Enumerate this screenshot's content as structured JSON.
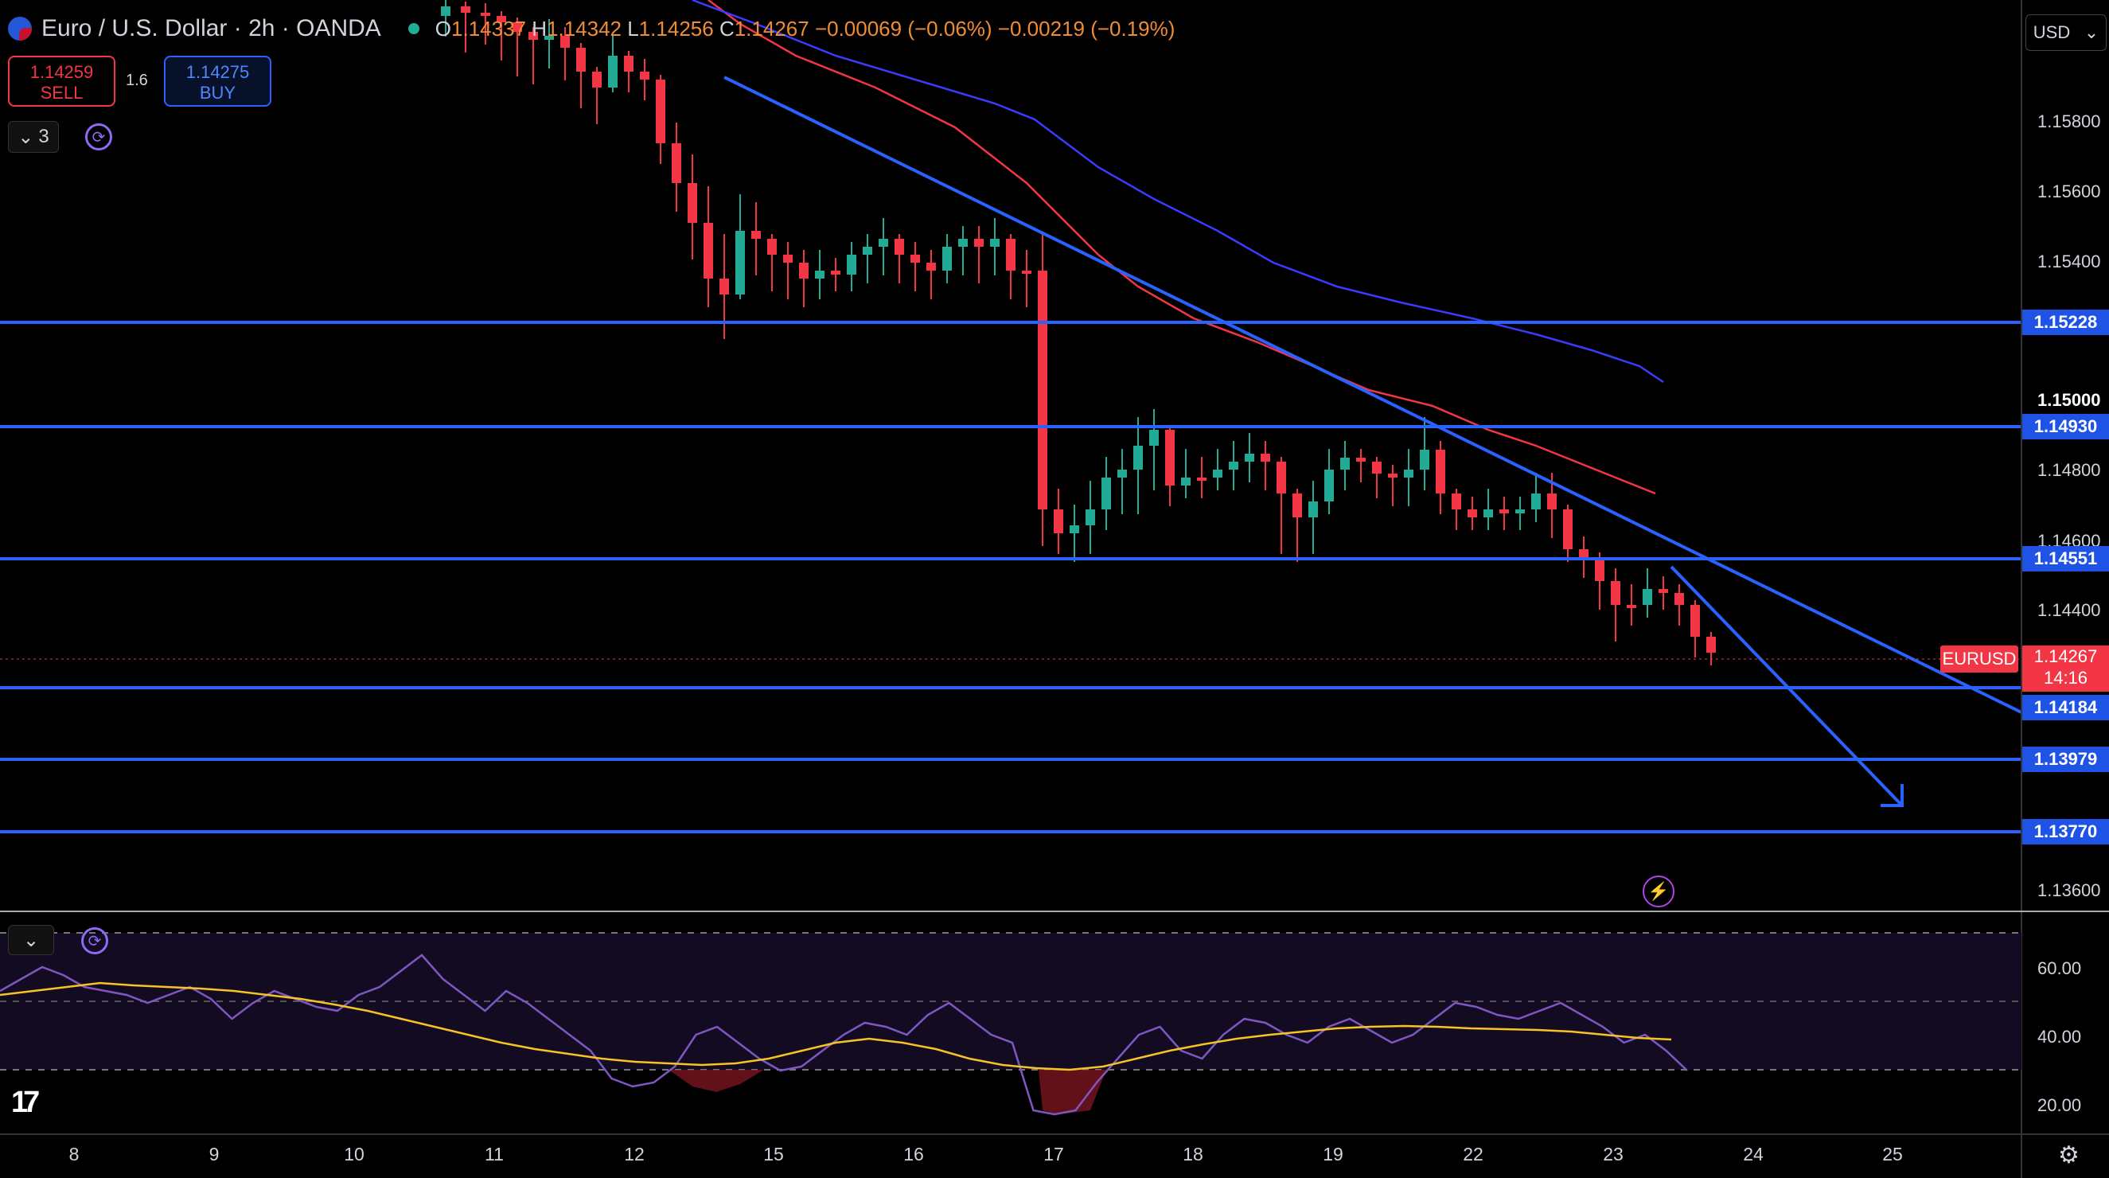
{
  "header": {
    "title": "Euro / U.S. Dollar · 2h · OANDA",
    "open_label": "O",
    "open": "1.14337",
    "high_label": "H",
    "high": "1.14342",
    "low_label": "L",
    "low": "1.14256",
    "close_label": "C",
    "close": "1.14267",
    "change": "−0.00069 (−0.06%)",
    "change2": "−0.00219 (−0.19%)"
  },
  "trade": {
    "sell_price": "1.14259",
    "sell_label": "SELL",
    "buy_price": "1.14275",
    "buy_label": "BUY",
    "spread": "1.6"
  },
  "indicators_count": "3",
  "currency": "USD",
  "symbol": "EURUSD",
  "current_price": "1.14267",
  "countdown": "14:16",
  "price_axis": [
    "1.15800",
    "1.15600",
    "1.15400",
    "1.15000",
    "1.14800",
    "1.14600",
    "1.14400",
    "1.13600"
  ],
  "levels": [
    "1.15228",
    "1.14930",
    "1.14551",
    "1.14184",
    "1.13979",
    "1.13770"
  ],
  "rsi_axis": [
    "60.00",
    "40.00",
    "20.00"
  ],
  "dates": [
    "8",
    "9",
    "10",
    "11",
    "12",
    "15",
    "16",
    "17",
    "18",
    "19",
    "22",
    "23",
    "24",
    "25"
  ],
  "colors": {
    "up": "#22ab94",
    "down": "#f23645",
    "level_line": "#2962ff",
    "trend_line": "#2962ff",
    "ma_fast": "#f23645",
    "ma_slow": "#3b3bff",
    "rsi": "#7e57c2",
    "rsi_ma": "#f7c325"
  },
  "chart_data": {
    "type": "candlestick",
    "symbol": "EURUSD",
    "interval": "2h",
    "candles_ohlc": [
      [
        1.158,
        1.16,
        1.156,
        1.1575
      ],
      [
        1.1575,
        1.1585,
        1.152,
        1.1535
      ],
      [
        1.1535,
        1.156,
        1.1525,
        1.155
      ],
      [
        1.155,
        1.1555,
        1.15,
        1.1505
      ],
      [
        1.1505,
        1.152,
        1.147,
        1.148
      ],
      [
        1.148,
        1.15,
        1.144,
        1.145
      ],
      [
        1.145,
        1.146,
        1.143,
        1.144
      ],
      [
        1.144,
        1.146,
        1.142,
        1.1425
      ],
      [
        1.1425,
        1.1455,
        1.1415,
        1.145
      ]
    ],
    "levels": [
      1.15228,
      1.1493,
      1.14551,
      1.14184,
      1.13979,
      1.1377
    ],
    "price_ylim": [
      1.1355,
      1.16
    ],
    "rsi_ylim": [
      15,
      75
    ],
    "rsi_levels": [
      70,
      50,
      30
    ]
  }
}
